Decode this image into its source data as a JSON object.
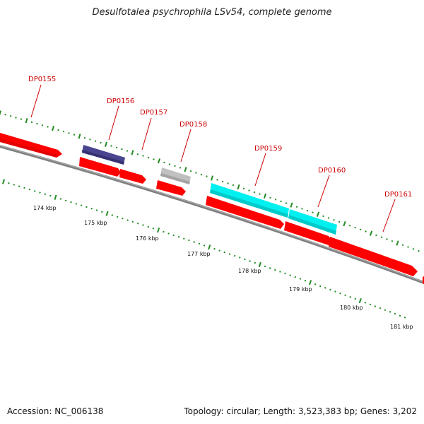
{
  "title": "Desulfotalea psychrophila LSv54, complete genome",
  "footer": {
    "accession": "Accession: NC_006138",
    "summary": "Topology: circular; Length: 3,523,383 bp; Genes: 3,202"
  },
  "colors": {
    "cds_red": "#ff0000",
    "cds_navy": "#4a4590",
    "cds_grey": "#c0c0c0",
    "cds_cyan": "#00f0f0",
    "backbone": "#808080",
    "tick_green": "#228b22",
    "label_red": "#cc0000"
  },
  "ticks": {
    "labels": [
      "174 kbp",
      "175 kbp",
      "176 kbp",
      "177 kbp",
      "178 kbp",
      "179 kbp",
      "180 kbp",
      "181 kbp"
    ]
  },
  "genes": [
    {
      "id": "DP0155",
      "label": "DP0155",
      "color": "cds_red"
    },
    {
      "id": "DP0156",
      "label": "DP0156",
      "color": "cds_navy"
    },
    {
      "id": "DP0157",
      "label": "DP0157",
      "color": "cds_red"
    },
    {
      "id": "DP0158",
      "label": "DP0158",
      "color": "cds_grey"
    },
    {
      "id": "DP0159",
      "label": "DP0159",
      "color": "cds_cyan"
    },
    {
      "id": "DP0160",
      "label": "DP0160",
      "color": "cds_cyan"
    },
    {
      "id": "DP0161",
      "label": "DP0161",
      "color": "cds_red"
    }
  ]
}
